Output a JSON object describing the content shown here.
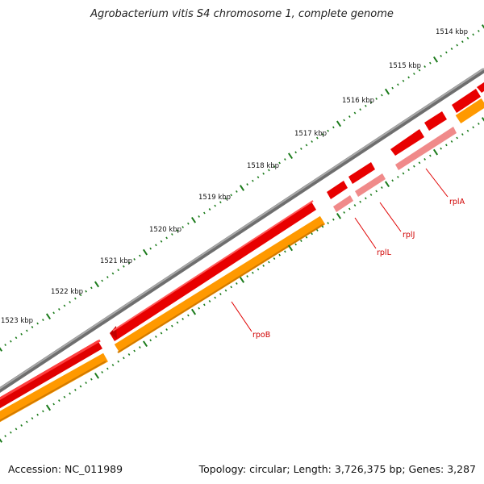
{
  "title": "Agrobacterium vitis S4 chromosome 1, complete genome",
  "footer": {
    "accession": "Accession: NC_011989",
    "summary": "Topology: circular; Length: 3,726,375 bp; Genes: 3,287"
  },
  "colors": {
    "backbone": "#7a7a7a",
    "cds_strand": "#ee0000",
    "gene_strand": "#ff9900",
    "rna_faded": "#f08a8a",
    "ticks": "#1a7a1a",
    "label": "#d00000"
  },
  "ruler": {
    "labels": [
      "1514 kbp",
      "1515 kbp",
      "1516 kbp",
      "1517 kbp",
      "1518 kbp",
      "1519 kbp",
      "1520 kbp",
      "1521 kbp",
      "1522 kbp",
      "1523 kbp"
    ]
  },
  "genes": [
    {
      "name": "rplA",
      "type": "gene",
      "icon": "red-arrow"
    },
    {
      "name": "rplJ",
      "type": "gene",
      "icon": "red-arrow"
    },
    {
      "name": "rplL",
      "type": "gene",
      "icon": "red-arrow"
    },
    {
      "name": "rpoB",
      "type": "gene",
      "icon": "red-arrow"
    }
  ]
}
